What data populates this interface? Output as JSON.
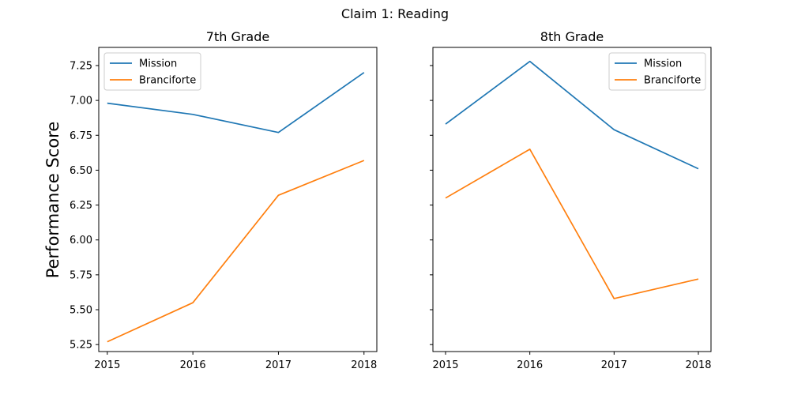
{
  "figure": {
    "suptitle": "Claim 1: Reading",
    "ylabel": "Performance Score"
  },
  "colors": {
    "Mission": "#1f77b4",
    "Branciforte": "#ff7f0e"
  },
  "chart_data": [
    {
      "type": "line",
      "title": "7th Grade",
      "xlabel": "",
      "ylabel": "Performance Score",
      "x": [
        2015,
        2016,
        2017,
        2018
      ],
      "xticks": [
        "2015",
        "2016",
        "2017",
        "2018"
      ],
      "ylim": [
        5.2,
        7.38
      ],
      "yticks": [
        "5.25",
        "5.50",
        "5.75",
        "6.00",
        "6.25",
        "6.50",
        "6.75",
        "7.00",
        "7.25"
      ],
      "grid": false,
      "legend": "upper left",
      "series": [
        {
          "name": "Mission",
          "values": [
            6.98,
            6.9,
            6.77,
            7.2
          ]
        },
        {
          "name": "Branciforte",
          "values": [
            5.27,
            5.55,
            6.32,
            6.57
          ]
        }
      ]
    },
    {
      "type": "line",
      "title": "8th Grade",
      "xlabel": "",
      "ylabel": "",
      "x": [
        2015,
        2016,
        2017,
        2018
      ],
      "xticks": [
        "2015",
        "2016",
        "2017",
        "2018"
      ],
      "ylim": [
        5.2,
        7.38
      ],
      "yticks": [],
      "grid": false,
      "legend": "upper right",
      "series": [
        {
          "name": "Mission",
          "values": [
            6.83,
            7.28,
            6.79,
            6.51
          ]
        },
        {
          "name": "Branciforte",
          "values": [
            6.3,
            6.65,
            5.58,
            5.72
          ]
        }
      ]
    }
  ]
}
